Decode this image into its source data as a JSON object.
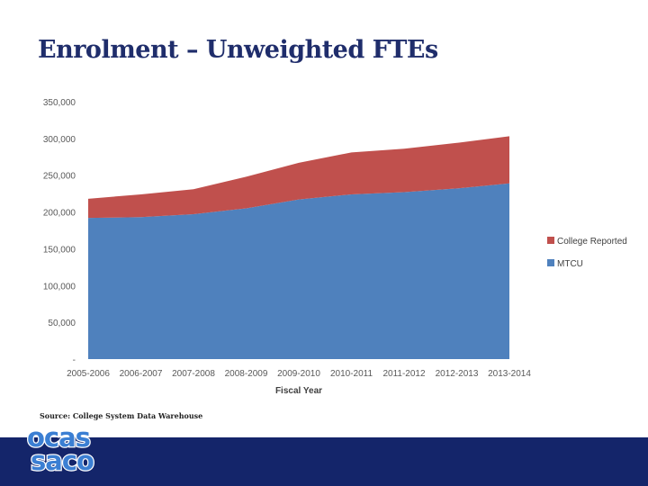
{
  "slide": {
    "title": "Enrolment – Unweighted FTEs",
    "source": "Source: College System Data Warehouse"
  },
  "logo": {
    "top": "ocas",
    "bottom": "saco"
  },
  "colors": {
    "mtcu": "#4f81bd",
    "college": "#c0504d",
    "band": "#14256a",
    "title": "#1f2d6b"
  },
  "chart_data": {
    "type": "area",
    "stacked": true,
    "categories": [
      "2005-2006",
      "2006-2007",
      "2007-2008",
      "2008-2009",
      "2009-2010",
      "2010-2011",
      "2011-2012",
      "2012-2013",
      "2013-2014"
    ],
    "series": [
      {
        "name": "MTCU",
        "color": "#4f81bd",
        "values": [
          192000,
          193000,
          197000,
          205000,
          217000,
          224000,
          227000,
          232000,
          239000
        ]
      },
      {
        "name": "College Reported",
        "color": "#c0504d",
        "values": [
          26000,
          31000,
          34000,
          43000,
          50000,
          57000,
          59000,
          62000,
          64000
        ]
      }
    ],
    "xlabel": "Fiscal Year",
    "ylabel": "",
    "ylim": [
      0,
      350000
    ],
    "yticks": [
      0,
      50000,
      100000,
      150000,
      200000,
      250000,
      300000,
      350000
    ],
    "ytick_labels": [
      "-",
      "50,000",
      "100,000",
      "150,000",
      "200,000",
      "250,000",
      "300,000",
      "350,000"
    ],
    "legend": {
      "position": "right",
      "order": [
        "College Reported",
        "MTCU"
      ]
    },
    "grid": false
  }
}
